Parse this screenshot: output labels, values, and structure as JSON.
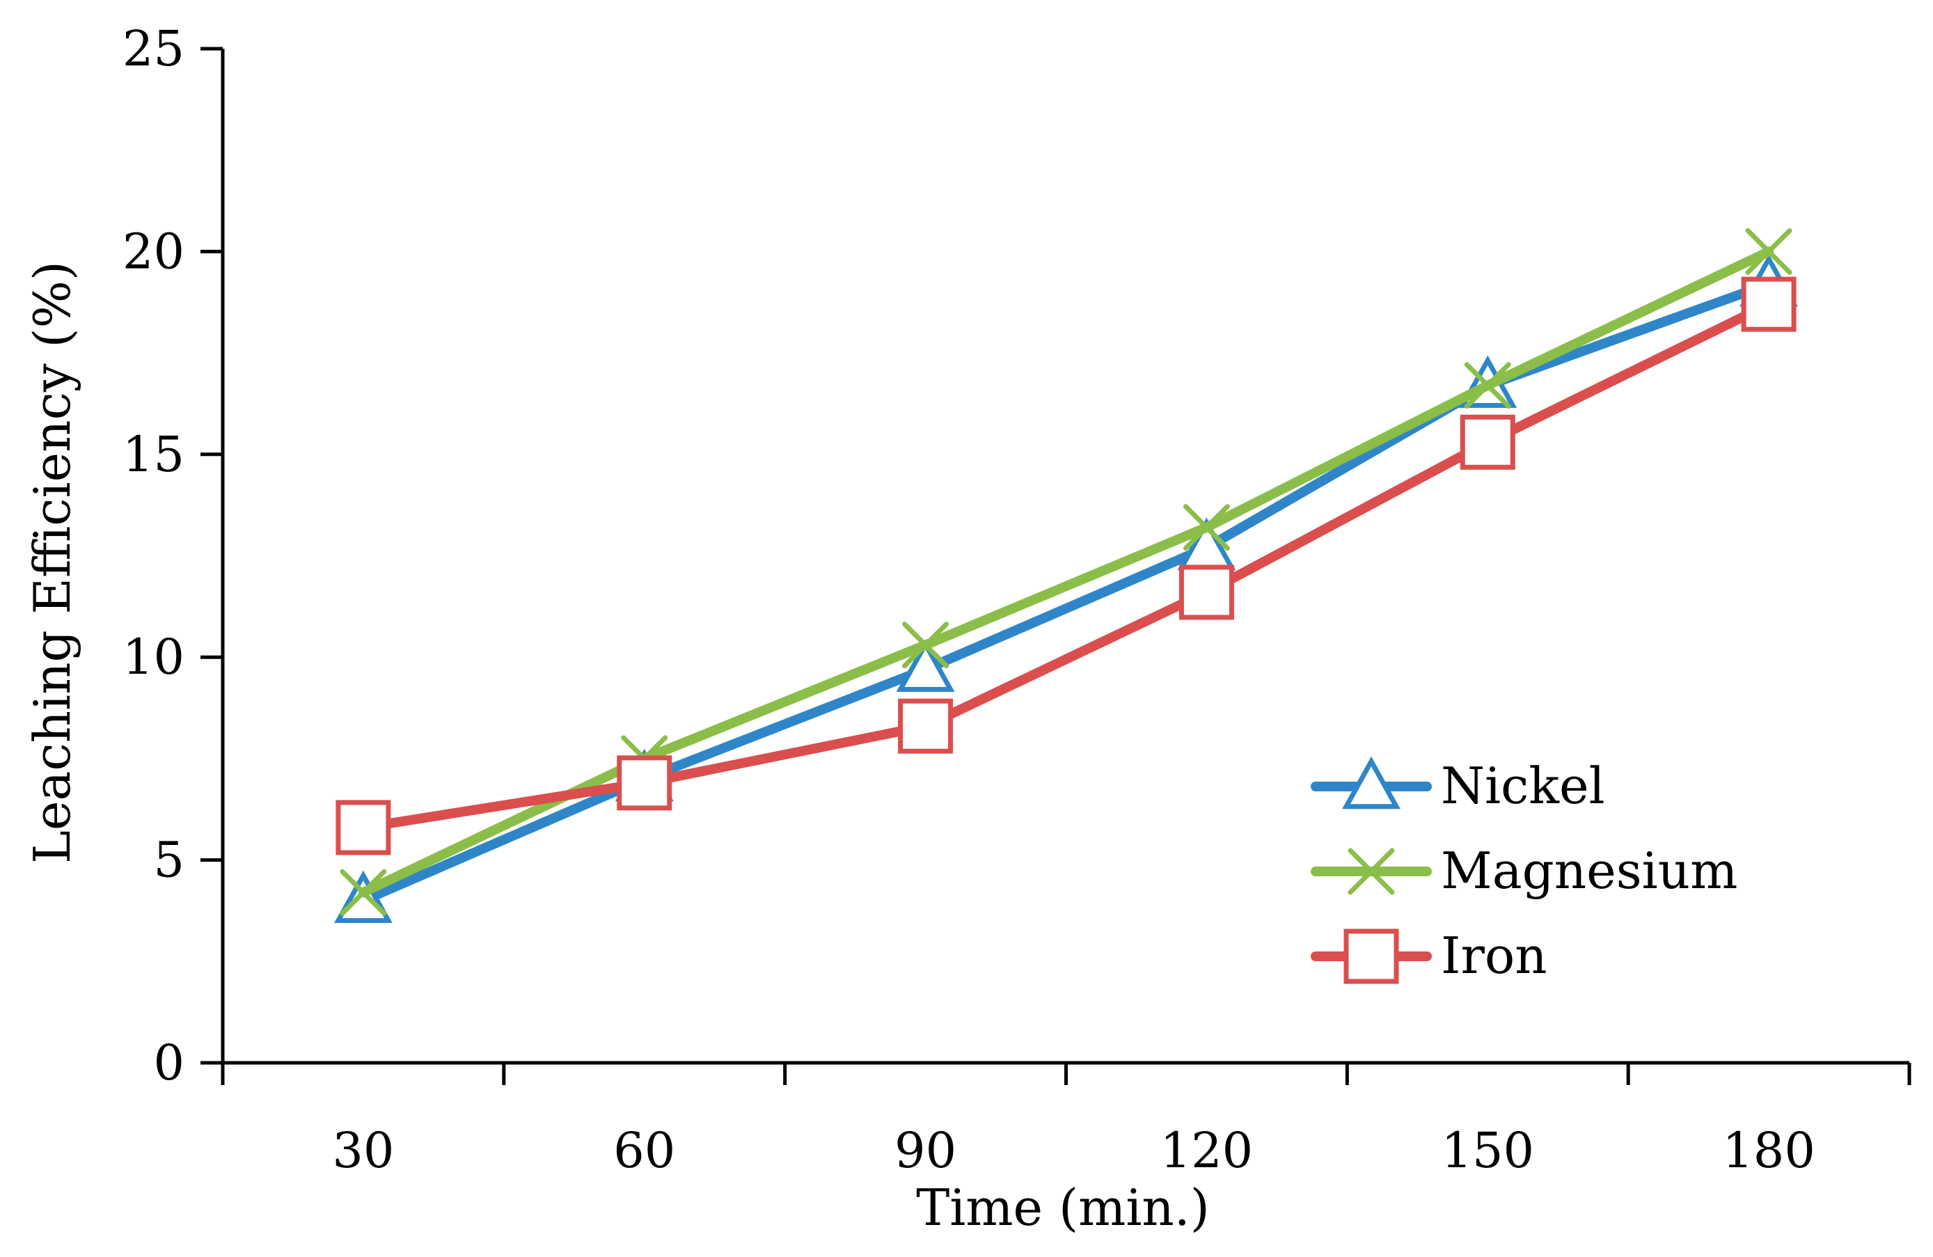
{
  "chart_data": {
    "type": "line",
    "title": "",
    "xlabel": "Time (min.)",
    "ylabel": "Leaching Efficiency (%)",
    "categories": [
      "30",
      "60",
      "90",
      "120",
      "150",
      "180"
    ],
    "x": [
      30,
      60,
      90,
      120,
      150,
      180
    ],
    "ylim": [
      0,
      25
    ],
    "yticks": [
      0,
      5,
      10,
      15,
      20,
      25
    ],
    "ytick_labels": [
      "0",
      "5",
      "10",
      "15",
      "20",
      "25"
    ],
    "grid": false,
    "legend_position": "center-right",
    "series": [
      {
        "name": "Nickel",
        "color": "#2E86C9",
        "marker": "triangle",
        "values": [
          4.0,
          7.0,
          9.7,
          12.7,
          16.7,
          19.2
        ]
      },
      {
        "name": "Magnesium",
        "color": "#8BBE48",
        "marker": "x",
        "values": [
          4.2,
          7.5,
          10.3,
          13.2,
          16.7,
          20.0
        ]
      },
      {
        "name": "Iron",
        "color": "#DB4E4E",
        "marker": "square",
        "values": [
          5.8,
          6.9,
          8.3,
          11.6,
          15.3,
          18.7
        ]
      }
    ]
  }
}
